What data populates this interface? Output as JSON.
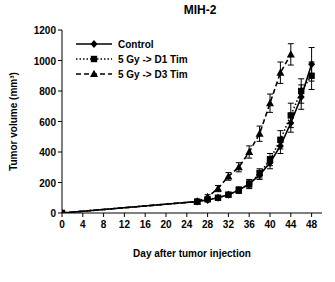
{
  "chart_data": {
    "type": "line",
    "title": "MIH-2",
    "x_label": "Day after tumor injection",
    "y_label": "Tumor volume (mm³)",
    "x": [
      0,
      26,
      28,
      30,
      32,
      34,
      36,
      38,
      40,
      42,
      44,
      46,
      48
    ],
    "series": [
      {
        "name": "Control",
        "color": "#000000",
        "line_style": "solid",
        "marker": "diamond",
        "values": [
          0,
          75,
          85,
          100,
          120,
          150,
          190,
          250,
          330,
          440,
          590,
          760,
          975
        ],
        "errors": [
          0,
          10,
          10,
          10,
          15,
          20,
          25,
          30,
          40,
          50,
          60,
          80,
          110
        ]
      },
      {
        "name": "5 Gy -> D1 Tim",
        "color": "#000000",
        "line_style": "dotted",
        "marker": "square",
        "values": [
          0,
          75,
          90,
          100,
          120,
          150,
          190,
          260,
          350,
          480,
          640,
          800,
          900
        ],
        "errors": [
          0,
          10,
          10,
          10,
          15,
          20,
          30,
          30,
          40,
          60,
          80,
          80,
          90
        ]
      },
      {
        "name": "5 Gy -> D3 Tim",
        "color": "#000000",
        "line_style": "dashed",
        "marker": "triangle",
        "values": [
          0,
          75,
          105,
          160,
          240,
          300,
          400,
          520,
          720,
          920,
          1040,
          null,
          null
        ],
        "errors": [
          0,
          10,
          15,
          20,
          25,
          30,
          40,
          50,
          60,
          70,
          70,
          null,
          null
        ]
      }
    ],
    "xlim": [
      0,
      50
    ],
    "xticks": [
      0,
      4,
      8,
      12,
      16,
      20,
      24,
      28,
      32,
      36,
      40,
      44,
      48
    ],
    "ylim": [
      0,
      1200
    ],
    "yticks": [
      0,
      200,
      400,
      600,
      800,
      1000,
      1200
    ],
    "grid": false,
    "legend": "upper left"
  }
}
